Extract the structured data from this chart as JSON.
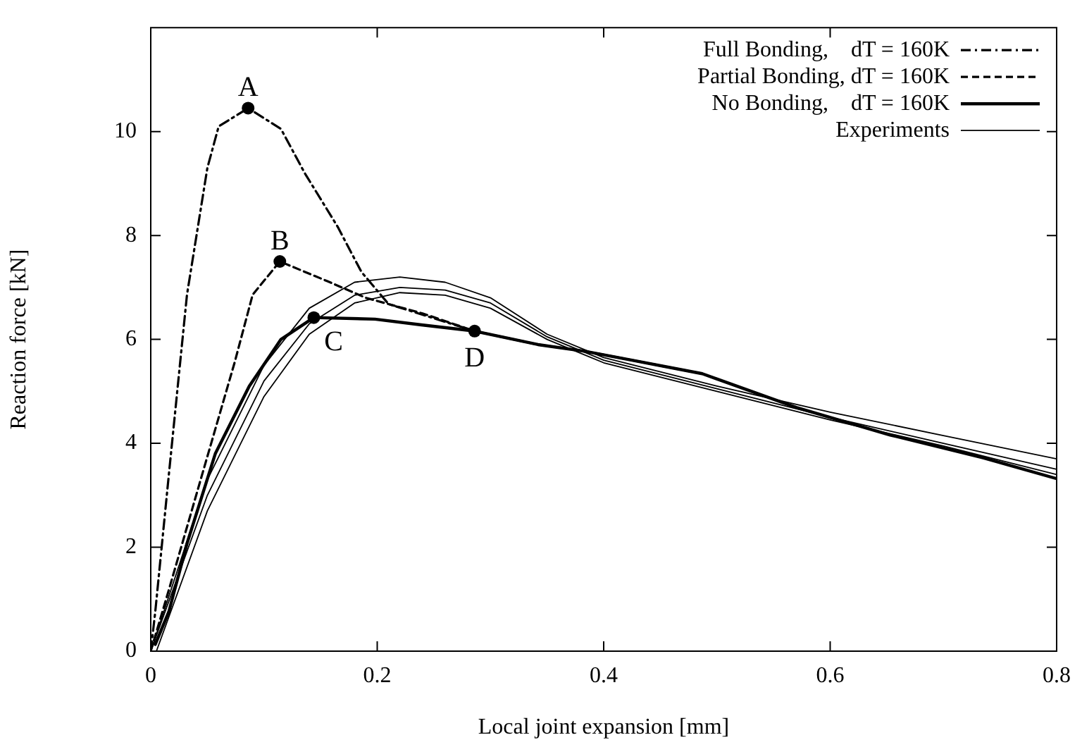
{
  "chart_data": {
    "type": "line",
    "xlabel": "Local joint expansion [mm]",
    "ylabel": "Reaction force [kN]",
    "xlim": [
      0,
      0.8
    ],
    "xticks": [
      0,
      0.2,
      0.4,
      0.6,
      0.8
    ],
    "ylim": [
      0,
      12
    ],
    "yticks": [
      0,
      2,
      4,
      6,
      8,
      10
    ],
    "grid": false,
    "legend": "top right",
    "marker": "none",
    "series": [
      {
        "name": "Full Bonding,    dT = 160K",
        "color": "#000000",
        "line_style": "dashdot",
        "x": [
          0,
          0.004,
          0.016,
          0.032,
          0.05,
          0.06,
          0.086,
          0.115,
          0.136,
          0.165,
          0.186,
          0.21,
          0.286,
          0.342,
          0.384,
          0.425,
          0.487
        ],
        "values": [
          0,
          0.76,
          3.4,
          6.86,
          9.3,
          10.1,
          10.45,
          10.05,
          9.2,
          8.17,
          7.3,
          6.68,
          6.16,
          5.9,
          5.77,
          5.6,
          5.34
        ]
      },
      {
        "name": "Partial Bonding, dT = 160K",
        "color": "#000000",
        "line_style": "dashed",
        "x": [
          0,
          0.016,
          0.045,
          0.074,
          0.09,
          0.114,
          0.156,
          0.19,
          0.24,
          0.286,
          0.342,
          0.384,
          0.425,
          0.487
        ],
        "values": [
          0,
          1.18,
          3.37,
          5.55,
          6.86,
          7.5,
          7.12,
          6.8,
          6.5,
          6.16,
          5.9,
          5.77,
          5.6,
          5.34
        ]
      },
      {
        "name": "No Bonding,     dT = 160K",
        "color": "#000000",
        "line_style": "solid",
        "x": [
          0.004,
          0.016,
          0.032,
          0.057,
          0.087,
          0.115,
          0.144,
          0.198,
          0.239,
          0.286,
          0.342,
          0.384,
          0.425,
          0.487,
          0.57,
          0.653,
          0.735,
          0.8
        ],
        "values": [
          0.13,
          0.76,
          2.07,
          3.8,
          5.1,
          6.0,
          6.42,
          6.39,
          6.28,
          6.16,
          5.9,
          5.77,
          5.6,
          5.34,
          4.69,
          4.16,
          3.72,
          3.32
        ]
      },
      {
        "name": "Experiments",
        "color": "#000000",
        "line_style": "solid",
        "x": [
          0,
          0.05,
          0.1,
          0.14,
          0.18,
          0.22,
          0.26,
          0.3,
          0.35,
          0.4,
          0.5,
          0.6,
          0.7,
          0.8
        ],
        "values": [
          0,
          3.3,
          5.5,
          6.6,
          7.1,
          7.2,
          7.1,
          6.8,
          6.1,
          5.65,
          5.1,
          4.6,
          4.15,
          3.7
        ]
      },
      {
        "color": "#000000",
        "line_style": "solid",
        "x": [
          0,
          0.05,
          0.1,
          0.14,
          0.18,
          0.22,
          0.26,
          0.3,
          0.35,
          0.4,
          0.5,
          0.6,
          0.7,
          0.8
        ],
        "values": [
          0,
          3.0,
          5.2,
          6.3,
          6.85,
          7.0,
          6.95,
          6.7,
          6.05,
          5.6,
          5.05,
          4.5,
          4.0,
          3.5
        ]
      },
      {
        "color": "#000000",
        "line_style": "solid",
        "x": [
          0.005,
          0.05,
          0.1,
          0.14,
          0.18,
          0.22,
          0.26,
          0.3,
          0.35,
          0.4,
          0.5,
          0.6,
          0.7,
          0.8
        ],
        "values": [
          0,
          2.7,
          4.9,
          6.1,
          6.7,
          6.9,
          6.85,
          6.6,
          6.0,
          5.55,
          5.0,
          4.45,
          3.95,
          3.4
        ]
      }
    ],
    "annotations": [
      {
        "text": "A",
        "x": 0.086,
        "y": 10.45
      },
      {
        "text": "B",
        "x": 0.114,
        "y": 7.5
      },
      {
        "text": "C",
        "x": 0.144,
        "y": 6.42
      },
      {
        "text": "D",
        "x": 0.286,
        "y": 6.16
      }
    ]
  }
}
